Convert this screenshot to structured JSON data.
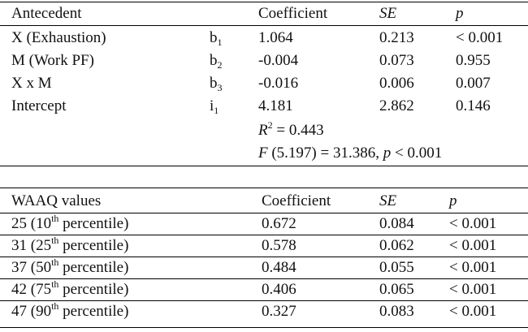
{
  "table1": {
    "headers": {
      "antecedent": "Antecedent",
      "coefficient": "Coefficient",
      "se": "SE",
      "p": "p"
    },
    "rows": [
      {
        "label": "X (Exhaustion)",
        "sym": "b",
        "sub": "1",
        "coef": "1.064",
        "se": "0.213",
        "p": "< 0.001"
      },
      {
        "label": "M (Work PF)",
        "sym": "b",
        "sub": "2",
        "coef": "-0.004",
        "se": "0.073",
        "p": "0.955"
      },
      {
        "label": "X x M",
        "sym": "b",
        "sub": "3",
        "coef": "-0.016",
        "se": "0.006",
        "p": "0.007"
      },
      {
        "label": "Intercept",
        "sym": "i",
        "sub": "1",
        "coef": "4.181",
        "se": "2.862",
        "p": "0.146"
      }
    ],
    "r2": {
      "symbol": "R",
      "sup": "2",
      "text": " = 0.443"
    },
    "f_stat": {
      "symbol": "F",
      "text_a": " (5.197) = 31.386, ",
      "p_symbol": "p",
      "text_b": " < 0.001"
    }
  },
  "table2": {
    "headers": {
      "waaq": "WAAQ values",
      "coefficient": "Coefficient",
      "se": "SE",
      "p": "p"
    },
    "rows": [
      {
        "val": "25 (10",
        "sup": "th",
        "suffix": " percentile)",
        "coef": "0.672",
        "se": "0.084",
        "p": "< 0.001"
      },
      {
        "val": "31 (25",
        "sup": "th",
        "suffix": " percentile)",
        "coef": "0.578",
        "se": "0.062",
        "p": "< 0.001"
      },
      {
        "val": "37 (50",
        "sup": "th",
        "suffix": " percentile)",
        "coef": "0.484",
        "se": "0.055",
        "p": "< 0.001"
      },
      {
        "val": "42 (75",
        "sup": "th",
        "suffix": " percentile)",
        "coef": "0.406",
        "se": "0.065",
        "p": "< 0.001"
      },
      {
        "val": "47 (90",
        "sup": "th",
        "suffix": " percentile)",
        "coef": "0.327",
        "se": "0.083",
        "p": "< 0.001"
      }
    ]
  }
}
